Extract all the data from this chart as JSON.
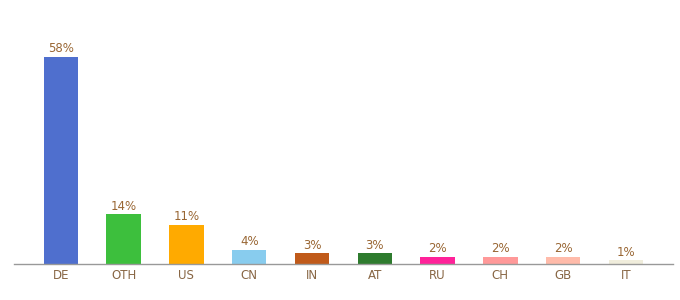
{
  "categories": [
    "DE",
    "OTH",
    "US",
    "CN",
    "IN",
    "AT",
    "RU",
    "CH",
    "GB",
    "IT"
  ],
  "values": [
    58,
    14,
    11,
    4,
    3,
    3,
    2,
    2,
    2,
    1
  ],
  "labels": [
    "58%",
    "14%",
    "11%",
    "4%",
    "3%",
    "3%",
    "2%",
    "2%",
    "2%",
    "1%"
  ],
  "bar_colors": [
    "#4f6fce",
    "#3dbf3d",
    "#ffaa00",
    "#88ccee",
    "#c05a1a",
    "#2e7b2e",
    "#ff2299",
    "#ff9999",
    "#ffbbaa",
    "#f0eddc"
  ],
  "label_fontsize": 8.5,
  "tick_fontsize": 8.5,
  "label_color": "#996633",
  "tick_color": "#886644",
  "background_color": "#ffffff",
  "ylim": [
    0,
    68
  ],
  "bar_width": 0.55
}
